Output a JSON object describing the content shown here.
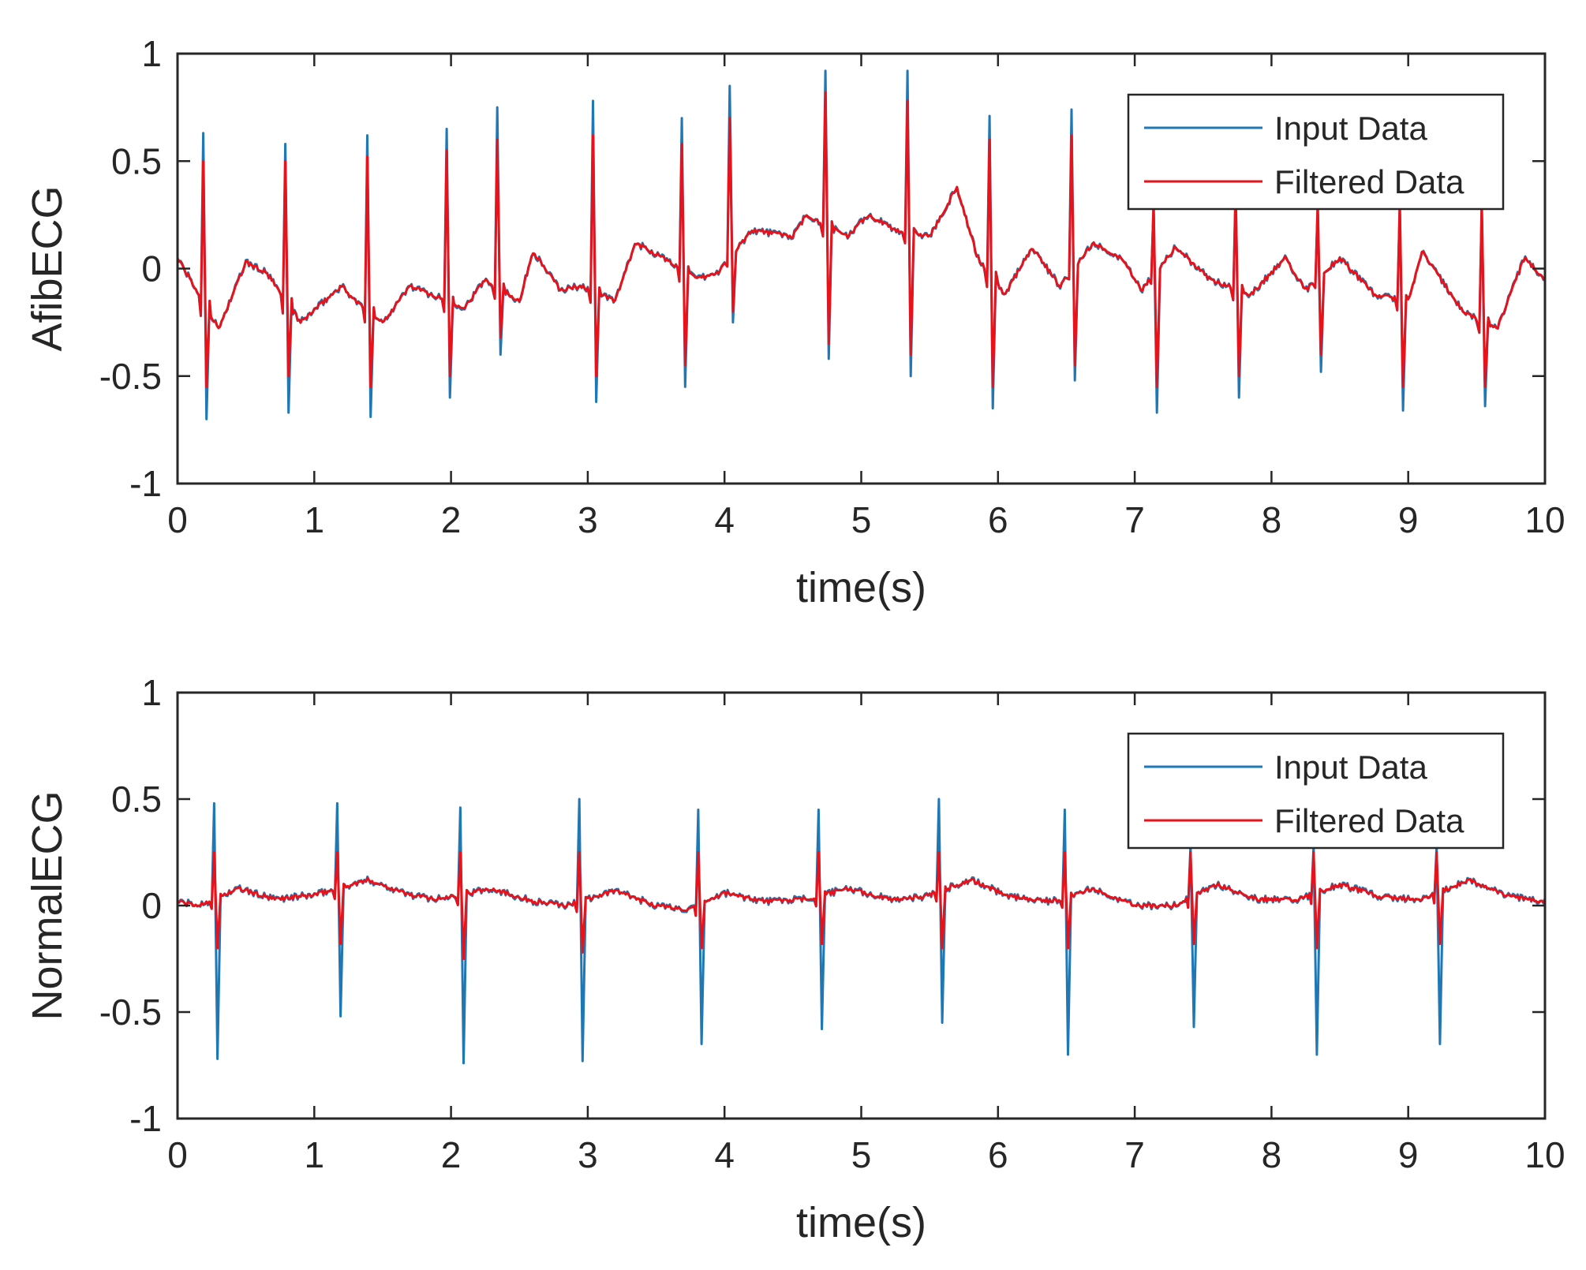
{
  "colors": {
    "input": "#1f77b4",
    "filtered": "#e8121a",
    "axis": "#262626",
    "background": "#ffffff"
  },
  "chart_data": [
    {
      "type": "line",
      "ylabel": "AfibECG",
      "xlabel": "time(s)",
      "xlim": [
        0,
        10
      ],
      "ylim": [
        -1,
        1
      ],
      "xticks": [
        "0",
        "1",
        "2",
        "3",
        "4",
        "5",
        "6",
        "7",
        "8",
        "9",
        "10"
      ],
      "yticks": [
        "1",
        "0.5",
        "0",
        "-0.5",
        "-1"
      ],
      "legend": {
        "position": "top-right",
        "entries": [
          "Input Data",
          "Filtered Data"
        ]
      },
      "series": [
        {
          "name": "Input Data",
          "color": "#1f77b4",
          "x": [
            0,
            0.2,
            0.45,
            0.65,
            0.8,
            1.0,
            1.2,
            1.4,
            1.6,
            1.8,
            2.0,
            2.2,
            2.35,
            2.6,
            2.8,
            3.05,
            3.2,
            3.5,
            3.7,
            3.9,
            4.05,
            4.3,
            4.6,
            4.75,
            5.0,
            5.2,
            5.35,
            5.6,
            5.75,
            5.95,
            6.2,
            6.55,
            6.8,
            7.1,
            7.4,
            7.75,
            8.0,
            8.35,
            8.6,
            8.95,
            9.2,
            9.55,
            9.8,
            10.0
          ],
          "peaks": [
            {
              "t": 0.2,
              "r": 0.63,
              "s": -0.7
            },
            {
              "t": 0.8,
              "r": 0.58,
              "s": -0.67
            },
            {
              "t": 1.4,
              "r": 0.62,
              "s": -0.69
            },
            {
              "t": 1.98,
              "r": 0.65,
              "s": -0.6
            },
            {
              "t": 2.35,
              "r": 0.75,
              "s": -0.4
            },
            {
              "t": 3.05,
              "r": 0.78,
              "s": -0.62
            },
            {
              "t": 3.7,
              "r": 0.7,
              "s": -0.55
            },
            {
              "t": 4.05,
              "r": 0.85,
              "s": -0.25
            },
            {
              "t": 4.75,
              "r": 0.92,
              "s": -0.42
            },
            {
              "t": 5.35,
              "r": 0.92,
              "s": -0.5
            },
            {
              "t": 5.95,
              "r": 0.71,
              "s": -0.65
            },
            {
              "t": 6.55,
              "r": 0.74,
              "s": -0.52
            },
            {
              "t": 7.15,
              "r": 0.3,
              "s": -0.67
            },
            {
              "t": 7.75,
              "r": 0.4,
              "s": -0.6
            },
            {
              "t": 8.35,
              "r": 0.3,
              "s": -0.48
            },
            {
              "t": 8.95,
              "r": 0.3,
              "s": -0.66
            },
            {
              "t": 9.55,
              "r": 0.3,
              "s": -0.64
            }
          ]
        },
        {
          "name": "Filtered Data",
          "color": "#e8121a",
          "peaks": [
            {
              "t": 0.2,
              "r": 0.5,
              "s": -0.55
            },
            {
              "t": 0.8,
              "r": 0.5,
              "s": -0.5
            },
            {
              "t": 1.4,
              "r": 0.52,
              "s": -0.55
            },
            {
              "t": 1.98,
              "r": 0.55,
              "s": -0.5
            },
            {
              "t": 2.35,
              "r": 0.6,
              "s": -0.32
            },
            {
              "t": 3.05,
              "r": 0.62,
              "s": -0.5
            },
            {
              "t": 3.7,
              "r": 0.58,
              "s": -0.45
            },
            {
              "t": 4.05,
              "r": 0.7,
              "s": -0.2
            },
            {
              "t": 4.75,
              "r": 0.82,
              "s": -0.35
            },
            {
              "t": 5.35,
              "r": 0.78,
              "s": -0.4
            },
            {
              "t": 5.95,
              "r": 0.6,
              "s": -0.55
            },
            {
              "t": 6.55,
              "r": 0.62,
              "s": -0.45
            },
            {
              "t": 7.15,
              "r": 0.3,
              "s": -0.55
            },
            {
              "t": 7.75,
              "r": 0.35,
              "s": -0.5
            },
            {
              "t": 8.35,
              "r": 0.3,
              "s": -0.4
            },
            {
              "t": 8.95,
              "r": 0.3,
              "s": -0.55
            },
            {
              "t": 9.55,
              "r": 0.3,
              "s": -0.55
            }
          ]
        }
      ],
      "baseline": [
        {
          "t": 0.0,
          "v": 0.05
        },
        {
          "t": 0.3,
          "v": -0.28
        },
        {
          "t": 0.5,
          "v": 0.03
        },
        {
          "t": 0.65,
          "v": -0.02
        },
        {
          "t": 0.9,
          "v": -0.25
        },
        {
          "t": 1.2,
          "v": -0.08
        },
        {
          "t": 1.3,
          "v": -0.15
        },
        {
          "t": 1.5,
          "v": -0.25
        },
        {
          "t": 1.7,
          "v": -0.08
        },
        {
          "t": 1.85,
          "v": -0.12
        },
        {
          "t": 2.1,
          "v": -0.18
        },
        {
          "t": 2.25,
          "v": -0.05
        },
        {
          "t": 2.5,
          "v": -0.15
        },
        {
          "t": 2.6,
          "v": 0.08
        },
        {
          "t": 2.8,
          "v": -0.1
        },
        {
          "t": 2.95,
          "v": -0.08
        },
        {
          "t": 3.2,
          "v": -0.15
        },
        {
          "t": 3.35,
          "v": 0.12
        },
        {
          "t": 3.55,
          "v": 0.05
        },
        {
          "t": 3.8,
          "v": -0.05
        },
        {
          "t": 3.95,
          "v": -0.02
        },
        {
          "t": 4.2,
          "v": 0.18
        },
        {
          "t": 4.5,
          "v": 0.15
        },
        {
          "t": 4.6,
          "v": 0.25
        },
        {
          "t": 4.9,
          "v": 0.15
        },
        {
          "t": 5.05,
          "v": 0.25
        },
        {
          "t": 5.25,
          "v": 0.18
        },
        {
          "t": 5.5,
          "v": 0.15
        },
        {
          "t": 5.7,
          "v": 0.38
        },
        {
          "t": 5.85,
          "v": 0.05
        },
        {
          "t": 6.05,
          "v": -0.12
        },
        {
          "t": 6.25,
          "v": 0.1
        },
        {
          "t": 6.45,
          "v": -0.08
        },
        {
          "t": 6.7,
          "v": 0.12
        },
        {
          "t": 6.9,
          "v": 0.05
        },
        {
          "t": 7.05,
          "v": -0.1
        },
        {
          "t": 7.3,
          "v": 0.1
        },
        {
          "t": 7.55,
          "v": -0.05
        },
        {
          "t": 7.85,
          "v": -0.12
        },
        {
          "t": 8.1,
          "v": 0.05
        },
        {
          "t": 8.25,
          "v": -0.1
        },
        {
          "t": 8.5,
          "v": 0.05
        },
        {
          "t": 8.75,
          "v": -0.12
        },
        {
          "t": 9.0,
          "v": -0.15
        },
        {
          "t": 9.1,
          "v": 0.08
        },
        {
          "t": 9.4,
          "v": -0.2
        },
        {
          "t": 9.65,
          "v": -0.28
        },
        {
          "t": 9.85,
          "v": 0.05
        },
        {
          "t": 10.0,
          "v": -0.05
        }
      ]
    },
    {
      "type": "line",
      "ylabel": "NormalECG",
      "xlabel": "time(s)",
      "xlim": [
        0,
        10
      ],
      "ylim": [
        -1,
        1
      ],
      "xticks": [
        "0",
        "1",
        "2",
        "3",
        "4",
        "5",
        "6",
        "7",
        "8",
        "9",
        "10"
      ],
      "yticks": [
        "1",
        "0.5",
        "0",
        "-0.5",
        "-1"
      ],
      "legend": {
        "position": "top-right",
        "entries": [
          "Input Data",
          "Filtered Data"
        ]
      },
      "series": [
        {
          "name": "Input Data",
          "color": "#1f77b4",
          "peaks": [
            {
              "t": 0.28,
              "r": 0.48,
              "s": -0.72
            },
            {
              "t": 1.18,
              "r": 0.48,
              "s": -0.52
            },
            {
              "t": 2.08,
              "r": 0.46,
              "s": -0.74
            },
            {
              "t": 2.95,
              "r": 0.5,
              "s": -0.73
            },
            {
              "t": 3.82,
              "r": 0.45,
              "s": -0.65
            },
            {
              "t": 4.7,
              "r": 0.45,
              "s": -0.58
            },
            {
              "t": 5.58,
              "r": 0.5,
              "s": -0.55
            },
            {
              "t": 6.5,
              "r": 0.45,
              "s": -0.7
            },
            {
              "t": 7.42,
              "r": 0.28,
              "s": -0.57
            },
            {
              "t": 8.32,
              "r": 0.28,
              "s": -0.7
            },
            {
              "t": 9.22,
              "r": 0.28,
              "s": -0.65
            }
          ]
        },
        {
          "name": "Filtered Data",
          "color": "#e8121a",
          "peaks": [
            {
              "t": 0.28,
              "r": 0.25,
              "s": -0.2
            },
            {
              "t": 1.18,
              "r": 0.25,
              "s": -0.18
            },
            {
              "t": 2.08,
              "r": 0.25,
              "s": -0.25
            },
            {
              "t": 2.95,
              "r": 0.25,
              "s": -0.22
            },
            {
              "t": 3.82,
              "r": 0.25,
              "s": -0.2
            },
            {
              "t": 4.7,
              "r": 0.25,
              "s": -0.18
            },
            {
              "t": 5.58,
              "r": 0.25,
              "s": -0.2
            },
            {
              "t": 6.5,
              "r": 0.25,
              "s": -0.2
            },
            {
              "t": 7.42,
              "r": 0.25,
              "s": -0.18
            },
            {
              "t": 8.32,
              "r": 0.25,
              "s": -0.2
            },
            {
              "t": 9.22,
              "r": 0.25,
              "s": -0.18
            }
          ]
        }
      ],
      "baseline": [
        {
          "t": 0.0,
          "v": 0.02
        },
        {
          "t": 0.15,
          "v": 0.0
        },
        {
          "t": 0.45,
          "v": 0.08
        },
        {
          "t": 0.7,
          "v": 0.03
        },
        {
          "t": 1.0,
          "v": 0.05
        },
        {
          "t": 1.4,
          "v": 0.12
        },
        {
          "t": 1.7,
          "v": 0.05
        },
        {
          "t": 1.9,
          "v": 0.03
        },
        {
          "t": 2.3,
          "v": 0.08
        },
        {
          "t": 2.6,
          "v": 0.02
        },
        {
          "t": 2.85,
          "v": 0.0
        },
        {
          "t": 3.2,
          "v": 0.07
        },
        {
          "t": 3.5,
          "v": 0.0
        },
        {
          "t": 3.75,
          "v": -0.02
        },
        {
          "t": 4.0,
          "v": 0.06
        },
        {
          "t": 4.3,
          "v": 0.02
        },
        {
          "t": 4.6,
          "v": 0.03
        },
        {
          "t": 4.9,
          "v": 0.08
        },
        {
          "t": 5.2,
          "v": 0.03
        },
        {
          "t": 5.45,
          "v": 0.04
        },
        {
          "t": 5.8,
          "v": 0.12
        },
        {
          "t": 6.1,
          "v": 0.04
        },
        {
          "t": 6.4,
          "v": 0.02
        },
        {
          "t": 6.7,
          "v": 0.08
        },
        {
          "t": 7.0,
          "v": 0.0
        },
        {
          "t": 7.3,
          "v": 0.0
        },
        {
          "t": 7.6,
          "v": 0.1
        },
        {
          "t": 7.9,
          "v": 0.03
        },
        {
          "t": 8.2,
          "v": 0.03
        },
        {
          "t": 8.5,
          "v": 0.1
        },
        {
          "t": 8.8,
          "v": 0.04
        },
        {
          "t": 9.1,
          "v": 0.03
        },
        {
          "t": 9.45,
          "v": 0.12
        },
        {
          "t": 9.75,
          "v": 0.04
        },
        {
          "t": 10.0,
          "v": 0.02
        }
      ]
    }
  ]
}
